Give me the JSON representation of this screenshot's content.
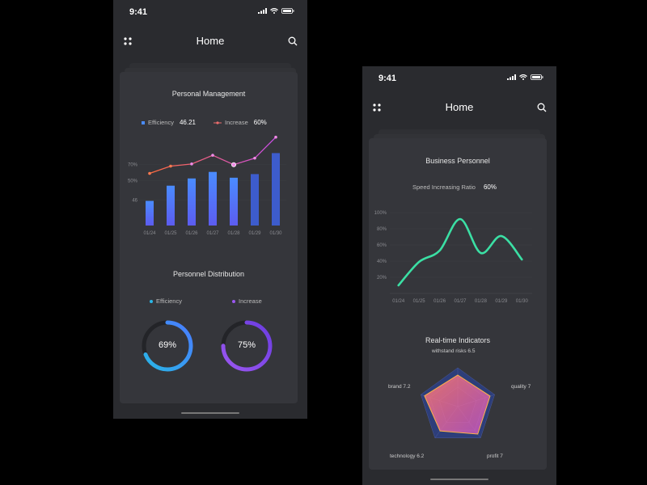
{
  "colors": {
    "bg": "#000000",
    "phone": "#2a2b2f",
    "card": "#35363b",
    "blue": "#4a8cff",
    "pink": "#d94fd0",
    "green": "#3bdfa4",
    "purple": "#9b57f0",
    "cyan": "#29b6e6"
  },
  "screen1": {
    "status": {
      "time": "9:41"
    },
    "nav": {
      "title": "Home",
      "menu_icon": "grid-dots-icon",
      "search_icon": "search-icon"
    },
    "management": {
      "title": "Personal Management",
      "legend_efficiency_label": "Efficiency",
      "legend_efficiency_value": "46.21",
      "legend_increase_label": "Increase",
      "legend_increase_value": "60%"
    },
    "distribution": {
      "title": "Personnel Distribution",
      "legend_efficiency": "Efficiency",
      "legend_increase": "Increase",
      "donut_efficiency_text": "69%",
      "donut_increase_text": "75%"
    }
  },
  "screen2": {
    "status": {
      "time": "9:41"
    },
    "nav": {
      "title": "Home",
      "menu_icon": "grid-dots-icon",
      "search_icon": "search-icon"
    },
    "business": {
      "title": "Business Personnel",
      "ratio_label": "Speed Increasing Ratio",
      "ratio_value": "60%"
    },
    "indicators": {
      "title": "Real-time Indicators"
    }
  },
  "chart_data": [
    {
      "type": "bar",
      "title": "Personal Management",
      "categories": [
        "01/24",
        "01/25",
        "01/26",
        "01/27",
        "01/28",
        "01/29",
        "01/30"
      ],
      "y_tick_labels": [
        "46",
        "50%",
        "70%"
      ],
      "series": [
        {
          "name": "Efficiency",
          "type": "bar",
          "values": [
            0.34,
            0.55,
            0.65,
            0.74,
            0.66,
            0.71,
            1.0
          ]
        },
        {
          "name": "Increase",
          "type": "line",
          "values": [
            0.72,
            0.82,
            0.85,
            0.97,
            0.84,
            0.93,
            1.22
          ]
        }
      ],
      "ylim": [
        0,
        1.25
      ]
    },
    {
      "type": "pie",
      "title": "Personnel Distribution",
      "series": [
        {
          "name": "Efficiency",
          "values": [
            69
          ]
        },
        {
          "name": "Increase",
          "values": [
            75
          ]
        }
      ]
    },
    {
      "type": "line",
      "title": "Business Personnel",
      "categories": [
        "01/24",
        "01/25",
        "01/26",
        "01/27",
        "01/28",
        "01/29",
        "01/30"
      ],
      "y_tick_labels": [
        "20%",
        "40%",
        "60%",
        "80%",
        "100%"
      ],
      "values": [
        10,
        39,
        53,
        92,
        50,
        71,
        42
      ],
      "ylim": [
        0,
        100
      ]
    },
    {
      "type": "radar",
      "title": "Real-time Indicators",
      "axes": [
        {
          "label": "withstand risks 6.5",
          "value": 6.5
        },
        {
          "label": "quality 7",
          "value": 7
        },
        {
          "label": "profit 7",
          "value": 7
        },
        {
          "label": "technology 6.2",
          "value": 6.2
        },
        {
          "label": "brand 7.2",
          "value": 7.2
        }
      ],
      "max": 10
    }
  ]
}
